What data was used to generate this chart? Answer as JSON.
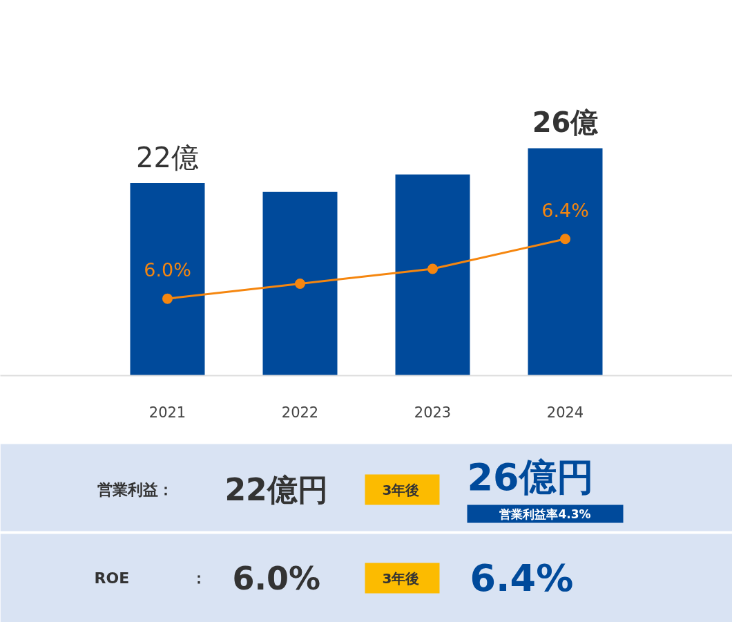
{
  "chart_data": [
    {
      "type": "bar",
      "categories": [
        "2021",
        "2022",
        "2023",
        "2024"
      ],
      "tick_labels": "x",
      "series": [
        {
          "type": "bar",
          "color": "#004a9b",
          "values": [
            22,
            21,
            23,
            26
          ],
          "value_labels": [
            "22億",
            null,
            null,
            "26億"
          ]
        },
        {
          "type": "line",
          "axis": "y2",
          "color": "#f5860f",
          "marker": "circle",
          "values": [
            6.0,
            6.1,
            6.2,
            6.4
          ],
          "value_labels": [
            "6.0%",
            null,
            null,
            "6.4%"
          ]
        }
      ]
    },
    {
      "type": "other",
      "annotations": [
        "営業利益：",
        "22億円",
        "3年後",
        "26億円",
        "営業利益率4.3%",
        "ROE",
        "：",
        "6.0%",
        "3年後",
        "6.4%"
      ]
    }
  ]
}
